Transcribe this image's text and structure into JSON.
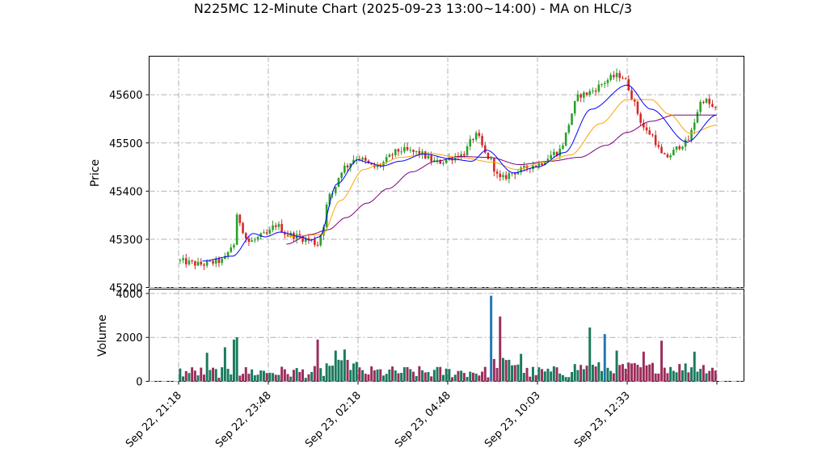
{
  "chart_data": {
    "type": "candlestick",
    "title": "N225MC 12-Minute Chart (2025-09-23 13:00~14:00) - MA on HLC/3",
    "price_panel": {
      "ylabel": "Price",
      "ylim": [
        45200,
        45680
      ],
      "yticks": [
        45200,
        45300,
        45400,
        45500,
        45600
      ],
      "grid": true
    },
    "volume_panel": {
      "ylabel": "Volume",
      "ylim": [
        0,
        4200
      ],
      "yticks": [
        0,
        2000,
        4000
      ],
      "grid": true
    },
    "x_axis": {
      "bars": 180,
      "tick_indices": [
        0,
        30,
        60,
        90,
        120,
        150,
        180
      ],
      "tick_labels": [
        "Sep 22, 21:18",
        "Sep 22, 23:48",
        "Sep 23, 02:18",
        "Sep 23, 04:48",
        "Sep 23, 10:03",
        "Sep 23, 12:33",
        ""
      ]
    },
    "colors": {
      "up": "#2ca02c",
      "down": "#d62728",
      "volume_up": "#1a7a5e",
      "volume_down": "#9b2d5c",
      "volume_spike": "#1f77b4",
      "ma_fast": "#0000ff",
      "ma_mid": "#ffa500",
      "ma_slow": "#800080"
    },
    "price_path": [
      {
        "i": 0,
        "p": 45255
      },
      {
        "i": 8,
        "p": 45248
      },
      {
        "i": 15,
        "p": 45255
      },
      {
        "i": 19,
        "p": 45290
      },
      {
        "i": 20,
        "p": 45345
      },
      {
        "i": 24,
        "p": 45295
      },
      {
        "i": 30,
        "p": 45310
      },
      {
        "i": 33,
        "p": 45330
      },
      {
        "i": 37,
        "p": 45310
      },
      {
        "i": 44,
        "p": 45300
      },
      {
        "i": 47,
        "p": 45290
      },
      {
        "i": 48,
        "p": 45310
      },
      {
        "i": 51,
        "p": 45390
      },
      {
        "i": 56,
        "p": 45450
      },
      {
        "i": 60,
        "p": 45470
      },
      {
        "i": 66,
        "p": 45450
      },
      {
        "i": 75,
        "p": 45485
      },
      {
        "i": 80,
        "p": 45480
      },
      {
        "i": 87,
        "p": 45460
      },
      {
        "i": 95,
        "p": 45475
      },
      {
        "i": 100,
        "p": 45515
      },
      {
        "i": 104,
        "p": 45470
      },
      {
        "i": 108,
        "p": 45425
      },
      {
        "i": 113,
        "p": 45440
      },
      {
        "i": 120,
        "p": 45455
      },
      {
        "i": 127,
        "p": 45480
      },
      {
        "i": 135,
        "p": 45600
      },
      {
        "i": 148,
        "p": 45640
      },
      {
        "i": 158,
        "p": 45520
      },
      {
        "i": 163,
        "p": 45470
      },
      {
        "i": 170,
        "p": 45500
      },
      {
        "i": 176,
        "p": 45590
      },
      {
        "i": 180,
        "p": 45570
      }
    ],
    "ma_fast_path": [
      {
        "i": 8,
        "p": 45255
      },
      {
        "i": 18,
        "p": 45265
      },
      {
        "i": 25,
        "p": 45312
      },
      {
        "i": 29,
        "p": 45305
      },
      {
        "i": 34,
        "p": 45315
      },
      {
        "i": 41,
        "p": 45305
      },
      {
        "i": 44,
        "p": 45298
      },
      {
        "i": 47,
        "p": 45305
      },
      {
        "i": 53,
        "p": 45415
      },
      {
        "i": 60,
        "p": 45465
      },
      {
        "i": 63,
        "p": 45460
      },
      {
        "i": 68,
        "p": 45452
      },
      {
        "i": 74,
        "p": 45462
      },
      {
        "i": 82,
        "p": 45477
      },
      {
        "i": 92,
        "p": 45466
      },
      {
        "i": 98,
        "p": 45462
      },
      {
        "i": 103,
        "p": 45485
      },
      {
        "i": 112,
        "p": 45438
      },
      {
        "i": 120,
        "p": 45450
      },
      {
        "i": 129,
        "p": 45480
      },
      {
        "i": 138,
        "p": 45570
      },
      {
        "i": 150,
        "p": 45620
      },
      {
        "i": 158,
        "p": 45570
      },
      {
        "i": 170,
        "p": 45502
      },
      {
        "i": 180,
        "p": 45558
      }
    ],
    "ma_mid_path": [
      {
        "i": 36,
        "p": 45305
      },
      {
        "i": 42,
        "p": 45308
      },
      {
        "i": 48,
        "p": 45310
      },
      {
        "i": 54,
        "p": 45380
      },
      {
        "i": 62,
        "p": 45445
      },
      {
        "i": 67,
        "p": 45455
      },
      {
        "i": 74,
        "p": 45470
      },
      {
        "i": 84,
        "p": 45478
      },
      {
        "i": 94,
        "p": 45470
      },
      {
        "i": 105,
        "p": 45460
      },
      {
        "i": 113,
        "p": 45445
      },
      {
        "i": 122,
        "p": 45460
      },
      {
        "i": 131,
        "p": 45475
      },
      {
        "i": 141,
        "p": 45540
      },
      {
        "i": 150,
        "p": 45590
      },
      {
        "i": 158,
        "p": 45590
      },
      {
        "i": 164,
        "p": 45560
      },
      {
        "i": 171,
        "p": 45520
      },
      {
        "i": 180,
        "p": 45537
      }
    ],
    "ma_slow_path": [
      {
        "i": 36,
        "p": 45290
      },
      {
        "i": 44,
        "p": 45310
      },
      {
        "i": 50,
        "p": 45320
      },
      {
        "i": 56,
        "p": 45345
      },
      {
        "i": 63,
        "p": 45375
      },
      {
        "i": 70,
        "p": 45405
      },
      {
        "i": 78,
        "p": 45440
      },
      {
        "i": 86,
        "p": 45462
      },
      {
        "i": 94,
        "p": 45472
      },
      {
        "i": 104,
        "p": 45470
      },
      {
        "i": 114,
        "p": 45455
      },
      {
        "i": 124,
        "p": 45462
      },
      {
        "i": 134,
        "p": 45470
      },
      {
        "i": 143,
        "p": 45495
      },
      {
        "i": 150,
        "p": 45522
      },
      {
        "i": 158,
        "p": 45545
      },
      {
        "i": 166,
        "p": 45558
      },
      {
        "i": 172,
        "p": 45558
      },
      {
        "i": 180,
        "p": 45558
      }
    ],
    "volume_spikes": [
      {
        "i": 104,
        "v": 3900
      },
      {
        "i": 107,
        "v": 2950
      },
      {
        "i": 137,
        "v": 2450
      },
      {
        "i": 142,
        "v": 2150
      },
      {
        "i": 161,
        "v": 1850
      },
      {
        "i": 46,
        "v": 1900
      },
      {
        "i": 19,
        "v": 2000
      },
      {
        "i": 18,
        "v": 1900
      },
      {
        "i": 15,
        "v": 1550
      },
      {
        "i": 9,
        "v": 1300
      },
      {
        "i": 52,
        "v": 1400
      },
      {
        "i": 55,
        "v": 1450
      },
      {
        "i": 114,
        "v": 1250
      },
      {
        "i": 146,
        "v": 1400
      },
      {
        "i": 155,
        "v": 1350
      },
      {
        "i": 172,
        "v": 1350
      }
    ]
  }
}
